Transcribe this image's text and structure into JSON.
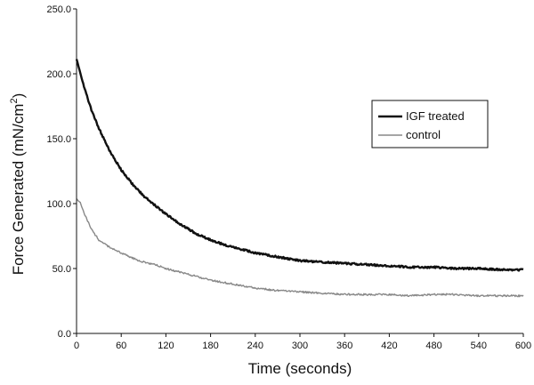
{
  "chart_data": {
    "type": "line",
    "xlabel": "Time (seconds)",
    "ylabel_main": "Force Generated (mN/cm",
    "ylabel_sup": "2",
    "ylabel_close": ")",
    "xlim": [
      0,
      600
    ],
    "ylim": [
      0,
      250
    ],
    "xticks": [
      0,
      60,
      120,
      180,
      240,
      300,
      360,
      420,
      480,
      540,
      600
    ],
    "xtick_labels": [
      "0",
      "60",
      "120",
      "180",
      "240",
      "300",
      "360",
      "420",
      "480",
      "540",
      "600"
    ],
    "yticks": [
      0,
      50,
      100,
      150,
      200,
      250
    ],
    "ytick_labels": [
      "0.0",
      "50.0",
      "100.0",
      "150.0",
      "200.0",
      "250.0"
    ],
    "grid": false,
    "legend_position": "right",
    "series": [
      {
        "name": "IGF treated",
        "color": "#111111",
        "x": [
          0,
          10,
          20,
          30,
          45,
          60,
          75,
          90,
          105,
          120,
          140,
          160,
          180,
          200,
          220,
          240,
          270,
          300,
          330,
          360,
          390,
          420,
          450,
          480,
          510,
          540,
          570,
          600
        ],
        "y": [
          212,
          190,
          172,
          158,
          140,
          126,
          115,
          106,
          99,
          92,
          84,
          77,
          72,
          68,
          65,
          62,
          59,
          56,
          55,
          54,
          53,
          52,
          51,
          51,
          50,
          50,
          49,
          49
        ]
      },
      {
        "name": "control",
        "color": "#888888",
        "x": [
          0,
          5,
          10,
          20,
          30,
          45,
          60,
          75,
          90,
          105,
          120,
          140,
          160,
          180,
          200,
          220,
          240,
          270,
          300,
          330,
          360,
          390,
          420,
          450,
          480,
          510,
          540,
          570,
          600
        ],
        "y": [
          103,
          101,
          93,
          80,
          72,
          66,
          62,
          58,
          55,
          53,
          50,
          47,
          44,
          41,
          39,
          37,
          35,
          33,
          32,
          31,
          30,
          30,
          30,
          29,
          30,
          30,
          29,
          29,
          29
        ]
      }
    ]
  }
}
